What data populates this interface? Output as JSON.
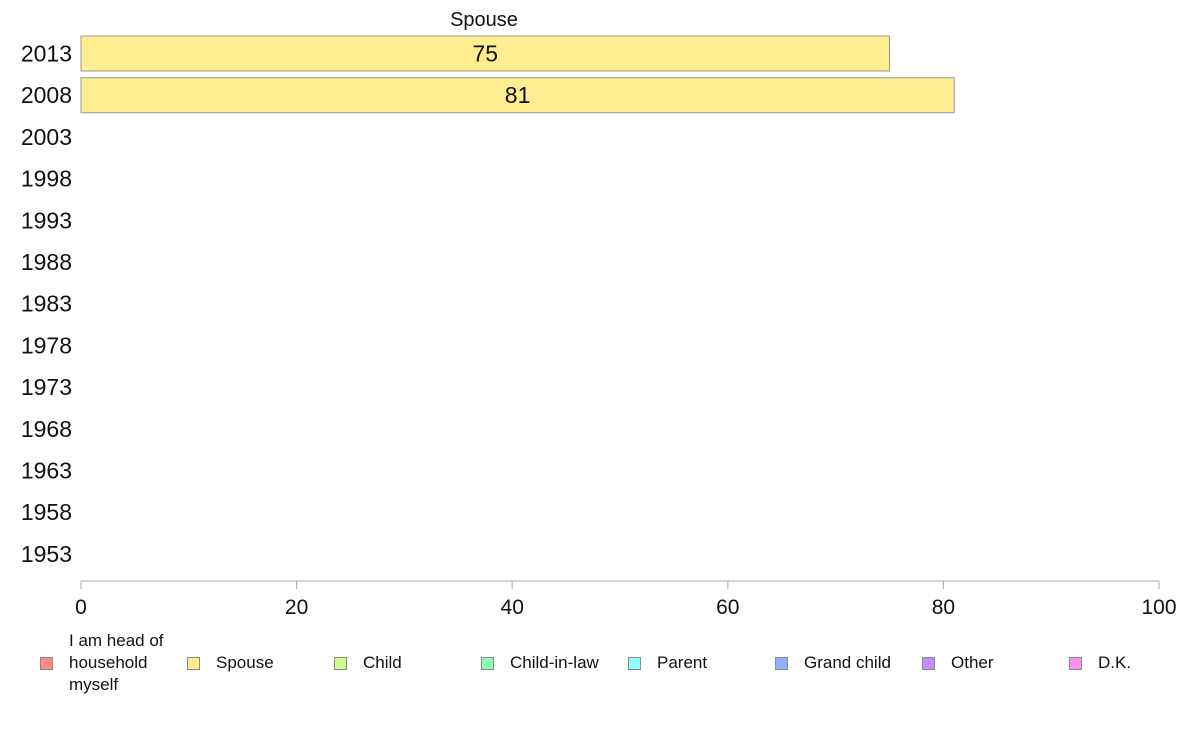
{
  "chart_data": {
    "type": "bar",
    "orientation": "horizontal",
    "title": "Spouse",
    "categories": [
      "2013",
      "2008",
      "2003",
      "1998",
      "1993",
      "1988",
      "1983",
      "1978",
      "1973",
      "1968",
      "1963",
      "1958",
      "1953"
    ],
    "series": [
      {
        "name": "Spouse",
        "values": [
          75,
          81,
          null,
          null,
          null,
          null,
          null,
          null,
          null,
          null,
          null,
          null,
          null
        ],
        "color": "#FFEE8F"
      }
    ],
    "data_labels": [
      "75",
      "81",
      "",
      "",
      "",
      "",
      "",
      "",
      "",
      "",
      "",
      "",
      ""
    ],
    "xlim": [
      0,
      100
    ],
    "xticks": [
      0,
      20,
      40,
      60,
      80,
      100
    ],
    "grid": false,
    "legend_position": "bottom"
  },
  "legend": {
    "items": [
      {
        "label": "I am head of\nhousehold\nmyself",
        "color": "#FF8A8A"
      },
      {
        "label": "Spouse",
        "color": "#FFEE8F"
      },
      {
        "label": "Child",
        "color": "#CCFF8F"
      },
      {
        "label": "Child-in-law",
        "color": "#8FFFB0"
      },
      {
        "label": "Parent",
        "color": "#8FFFFF"
      },
      {
        "label": "Grand child",
        "color": "#8FAFFF"
      },
      {
        "label": "Other",
        "color": "#BF8FFF"
      },
      {
        "label": "D.K.",
        "color": "#FF8FEF"
      }
    ]
  }
}
